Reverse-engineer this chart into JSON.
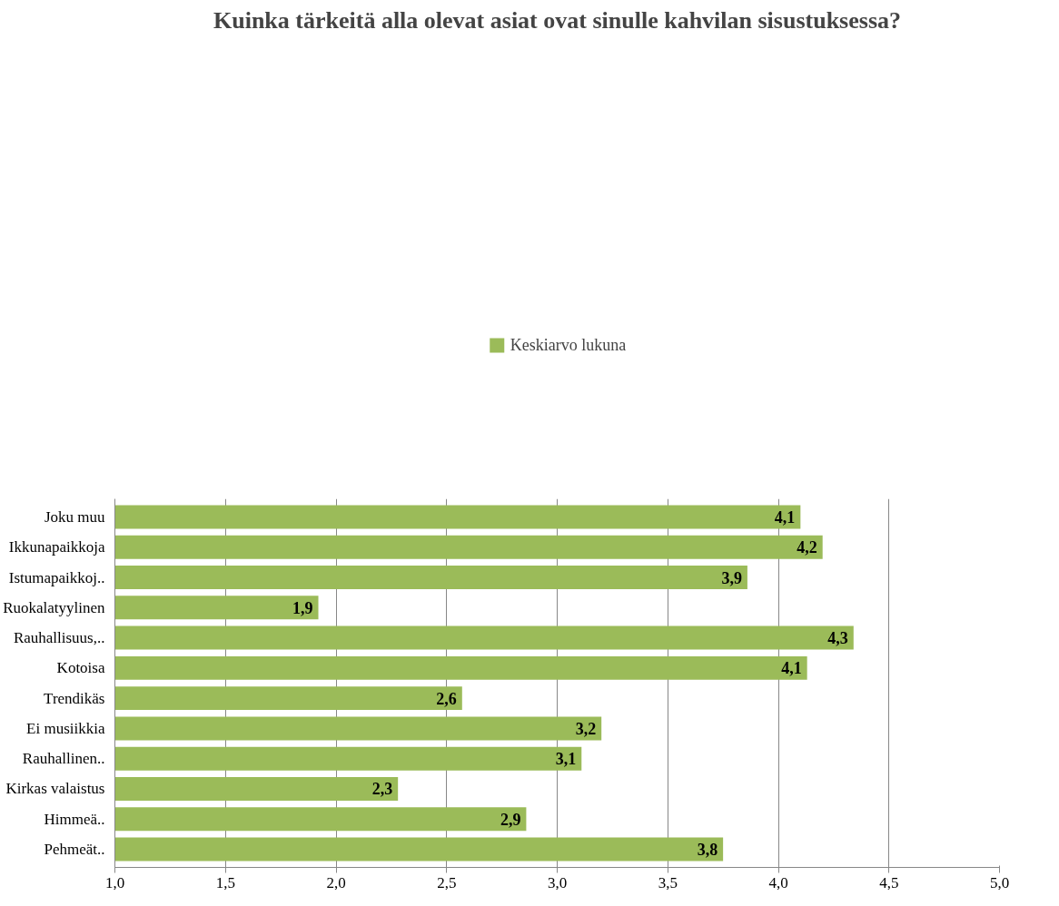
{
  "chart_data": {
    "type": "bar",
    "orientation": "horizontal",
    "title": "Kuinka tärkeitä alla olevat asiat ovat sinulle kahvilan sisustuksessa?",
    "categories": [
      "Joku muu",
      "Ikkunapaikkoja",
      "Istumapaikkoj..",
      "Ruokalatyylinen",
      "Rauhallisuus,..",
      "Kotoisa",
      "Trendikäs",
      "Ei musiikkia",
      "Rauhallinen..",
      "Kirkas valaistus",
      "Himmeä..",
      "Pehmeät.."
    ],
    "series": [
      {
        "name": "Keskiarvo lukuna",
        "color": "#9bbb59",
        "values": [
          4.1,
          4.2,
          3.86,
          1.92,
          4.34,
          4.13,
          2.57,
          3.2,
          3.11,
          2.28,
          2.86,
          3.75
        ],
        "value_labels": [
          "4,1",
          "4,2",
          "3,9",
          "1,9",
          "4,3",
          "4,1",
          "2,6",
          "3,2",
          "3,1",
          "2,3",
          "2,9",
          "3,8"
        ]
      }
    ],
    "xlim": [
      1.0,
      5.0
    ],
    "xticks": [
      {
        "value": 1.0,
        "label": "1,0"
      },
      {
        "value": 1.5,
        "label": "1,5"
      },
      {
        "value": 2.0,
        "label": "2,0"
      },
      {
        "value": 2.5,
        "label": "2,5"
      },
      {
        "value": 3.0,
        "label": "3,0"
      },
      {
        "value": 3.5,
        "label": "3,5"
      },
      {
        "value": 4.0,
        "label": "4,0"
      },
      {
        "value": 4.5,
        "label": "4,5"
      },
      {
        "value": 5.0,
        "label": "5,0"
      }
    ],
    "grid": "x",
    "legend": "top"
  }
}
